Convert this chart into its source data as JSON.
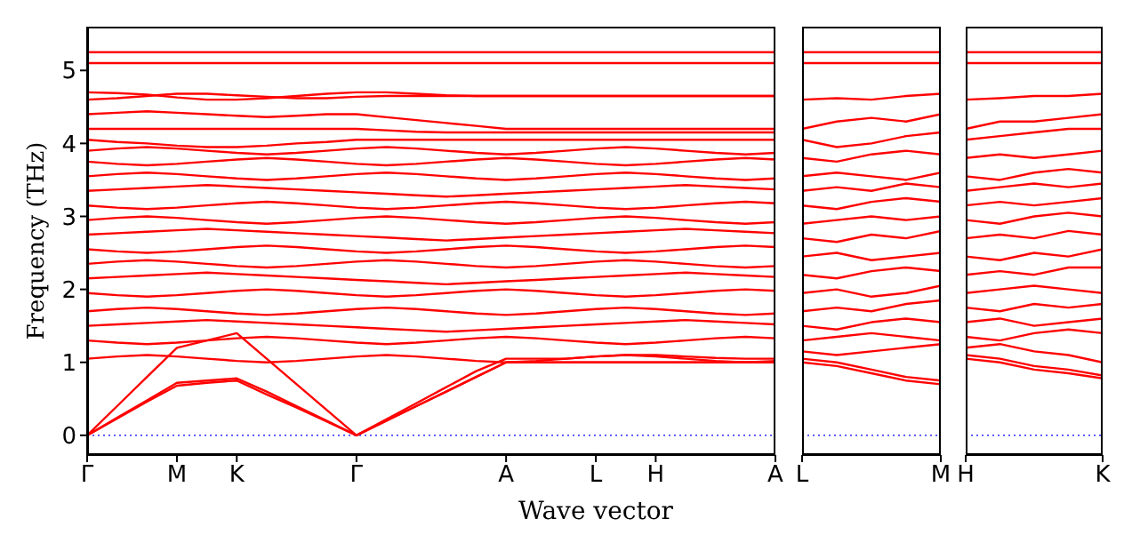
{
  "chart_data": [
    {
      "type": "line",
      "ylabel": "Frequency (THz)",
      "xlabel": "Wave vector",
      "line_style": "solid",
      "marker": "none",
      "categories": [
        "Γ",
        null,
        null,
        "M",
        null,
        "K",
        null,
        null,
        null,
        "Γ",
        null,
        null,
        null,
        null,
        "A",
        null,
        null,
        "L",
        null,
        "H",
        null,
        null,
        null,
        "A"
      ],
      "ylim": [
        -0.27,
        5.6
      ],
      "yticks": [
        0,
        1,
        2,
        3,
        4,
        5
      ],
      "ref_lines": [
        {
          "axis": "y",
          "value": 0,
          "color": "#0000ff",
          "line_style": "dotted"
        }
      ],
      "series": [
        {
          "color": "#ff0000",
          "values": [
            0,
            0.23,
            0.46,
            0.68,
            0.72,
            0.75,
            0.56,
            0.38,
            0.19,
            0,
            0.2,
            0.4,
            0.6,
            0.8,
            1.0,
            1.0,
            1.0,
            1.0,
            1.0,
            1.0,
            1.0,
            1.0,
            1.0,
            1.0
          ]
        },
        {
          "color": "#ff0000",
          "values": [
            0,
            0.24,
            0.48,
            0.72,
            0.75,
            0.78,
            0.6,
            0.4,
            0.2,
            0,
            0.2,
            0.4,
            0.6,
            0.8,
            1.0,
            1.0,
            1.0,
            1.0,
            1.0,
            1.0,
            1.0,
            1.0,
            1.0,
            1.0
          ]
        },
        {
          "color": "#ff0000",
          "values": [
            0,
            0.4,
            0.8,
            1.2,
            1.3,
            1.4,
            1.05,
            0.7,
            0.35,
            0,
            0.22,
            0.44,
            0.66,
            0.88,
            1.05,
            1.05,
            1.05,
            1.08,
            1.1,
            1.1,
            1.08,
            1.06,
            1.05,
            1.05
          ]
        },
        {
          "color": "#ff0000",
          "values": [
            1.05,
            1.08,
            1.1,
            1.08,
            1.05,
            1.02,
            1.0,
            1.02,
            1.05,
            1.08,
            1.1,
            1.08,
            1.05,
            1.02,
            1.0,
            1.02,
            1.05,
            1.08,
            1.1,
            1.08,
            1.05,
            1.02,
            1.0,
            1.02
          ]
        },
        {
          "color": "#ff0000",
          "values": [
            1.3,
            1.27,
            1.25,
            1.27,
            1.3,
            1.33,
            1.35,
            1.33,
            1.3,
            1.27,
            1.25,
            1.27,
            1.3,
            1.33,
            1.35,
            1.33,
            1.3,
            1.27,
            1.25,
            1.27,
            1.3,
            1.33,
            1.35,
            1.33
          ]
        },
        {
          "color": "#ff0000",
          "values": [
            1.5,
            1.52,
            1.54,
            1.56,
            1.58,
            1.56,
            1.54,
            1.52,
            1.5,
            1.48,
            1.46,
            1.44,
            1.42,
            1.44,
            1.46,
            1.48,
            1.5,
            1.52,
            1.54,
            1.56,
            1.58,
            1.56,
            1.54,
            1.52
          ]
        },
        {
          "color": "#ff0000",
          "values": [
            1.7,
            1.73,
            1.75,
            1.73,
            1.7,
            1.67,
            1.65,
            1.67,
            1.7,
            1.73,
            1.75,
            1.73,
            1.7,
            1.67,
            1.65,
            1.67,
            1.7,
            1.73,
            1.75,
            1.73,
            1.7,
            1.67,
            1.65,
            1.67
          ]
        },
        {
          "color": "#ff0000",
          "values": [
            1.95,
            1.92,
            1.9,
            1.92,
            1.95,
            1.98,
            2.0,
            1.98,
            1.95,
            1.92,
            1.9,
            1.92,
            1.95,
            1.98,
            2.0,
            1.98,
            1.95,
            1.92,
            1.9,
            1.92,
            1.95,
            1.98,
            2.0,
            1.98
          ]
        },
        {
          "color": "#ff0000",
          "values": [
            2.15,
            2.17,
            2.19,
            2.21,
            2.23,
            2.21,
            2.19,
            2.17,
            2.15,
            2.13,
            2.11,
            2.09,
            2.07,
            2.09,
            2.11,
            2.13,
            2.15,
            2.17,
            2.19,
            2.21,
            2.23,
            2.21,
            2.19,
            2.17
          ]
        },
        {
          "color": "#ff0000",
          "values": [
            2.35,
            2.38,
            2.4,
            2.38,
            2.35,
            2.32,
            2.3,
            2.32,
            2.35,
            2.38,
            2.4,
            2.38,
            2.35,
            2.32,
            2.3,
            2.32,
            2.35,
            2.38,
            2.4,
            2.38,
            2.35,
            2.32,
            2.3,
            2.32
          ]
        },
        {
          "color": "#ff0000",
          "values": [
            2.55,
            2.52,
            2.5,
            2.52,
            2.55,
            2.58,
            2.6,
            2.58,
            2.55,
            2.52,
            2.5,
            2.52,
            2.55,
            2.58,
            2.6,
            2.58,
            2.55,
            2.52,
            2.5,
            2.52,
            2.55,
            2.58,
            2.6,
            2.58
          ]
        },
        {
          "color": "#ff0000",
          "values": [
            2.75,
            2.77,
            2.79,
            2.81,
            2.83,
            2.81,
            2.79,
            2.77,
            2.75,
            2.73,
            2.71,
            2.69,
            2.67,
            2.69,
            2.71,
            2.73,
            2.75,
            2.77,
            2.79,
            2.81,
            2.83,
            2.81,
            2.79,
            2.77
          ]
        },
        {
          "color": "#ff0000",
          "values": [
            2.95,
            2.98,
            3.0,
            2.98,
            2.95,
            2.92,
            2.9,
            2.92,
            2.95,
            2.98,
            3.0,
            2.98,
            2.95,
            2.92,
            2.9,
            2.92,
            2.95,
            2.98,
            3.0,
            2.98,
            2.95,
            2.92,
            2.9,
            2.92
          ]
        },
        {
          "color": "#ff0000",
          "values": [
            3.15,
            3.12,
            3.1,
            3.12,
            3.15,
            3.18,
            3.2,
            3.18,
            3.15,
            3.12,
            3.1,
            3.12,
            3.15,
            3.18,
            3.2,
            3.18,
            3.15,
            3.12,
            3.1,
            3.12,
            3.15,
            3.18,
            3.2,
            3.18
          ]
        },
        {
          "color": "#ff0000",
          "values": [
            3.35,
            3.37,
            3.39,
            3.41,
            3.43,
            3.41,
            3.39,
            3.37,
            3.35,
            3.33,
            3.31,
            3.29,
            3.27,
            3.29,
            3.31,
            3.33,
            3.35,
            3.37,
            3.39,
            3.41,
            3.43,
            3.41,
            3.39,
            3.37
          ]
        },
        {
          "color": "#ff0000",
          "values": [
            3.55,
            3.58,
            3.6,
            3.58,
            3.55,
            3.52,
            3.5,
            3.52,
            3.55,
            3.58,
            3.6,
            3.58,
            3.55,
            3.52,
            3.5,
            3.52,
            3.55,
            3.58,
            3.6,
            3.58,
            3.55,
            3.52,
            3.5,
            3.52
          ]
        },
        {
          "color": "#ff0000",
          "values": [
            3.75,
            3.72,
            3.7,
            3.72,
            3.75,
            3.78,
            3.8,
            3.78,
            3.75,
            3.72,
            3.7,
            3.72,
            3.75,
            3.78,
            3.8,
            3.78,
            3.75,
            3.72,
            3.7,
            3.72,
            3.75,
            3.78,
            3.8,
            3.78
          ]
        },
        {
          "color": "#ff0000",
          "values": [
            3.9,
            3.93,
            3.95,
            3.93,
            3.9,
            3.87,
            3.85,
            3.87,
            3.9,
            3.93,
            3.95,
            3.93,
            3.9,
            3.87,
            3.85,
            3.87,
            3.9,
            3.93,
            3.95,
            3.93,
            3.9,
            3.87,
            3.85,
            3.87
          ]
        },
        {
          "color": "#ff0000",
          "values": [
            4.05,
            4.02,
            4.0,
            3.97,
            3.95,
            3.95,
            3.97,
            4.0,
            4.02,
            4.05,
            4.05,
            4.05,
            4.05,
            4.05,
            4.05,
            4.05,
            4.05,
            4.05,
            4.05,
            4.05,
            4.05,
            4.05,
            4.05,
            4.05
          ]
        },
        {
          "color": "#ff0000",
          "values": [
            4.2,
            4.2,
            4.2,
            4.2,
            4.2,
            4.2,
            4.2,
            4.2,
            4.2,
            4.2,
            4.18,
            4.16,
            4.15,
            4.15,
            4.15,
            4.15,
            4.15,
            4.15,
            4.15,
            4.15,
            4.15,
            4.15,
            4.15,
            4.15
          ]
        },
        {
          "color": "#ff0000",
          "values": [
            4.4,
            4.42,
            4.44,
            4.42,
            4.4,
            4.38,
            4.36,
            4.38,
            4.4,
            4.4,
            4.36,
            4.32,
            4.28,
            4.24,
            4.2,
            4.2,
            4.2,
            4.2,
            4.2,
            4.2,
            4.2,
            4.2,
            4.2,
            4.2
          ]
        },
        {
          "color": "#ff0000",
          "values": [
            4.6,
            4.62,
            4.65,
            4.68,
            4.68,
            4.66,
            4.64,
            4.62,
            4.62,
            4.64,
            4.65,
            4.65,
            4.65,
            4.65,
            4.65,
            4.65,
            4.65,
            4.65,
            4.65,
            4.65,
            4.65,
            4.65,
            4.65,
            4.65
          ]
        },
        {
          "color": "#ff0000",
          "values": [
            4.7,
            4.69,
            4.67,
            4.63,
            4.6,
            4.6,
            4.62,
            4.65,
            4.68,
            4.7,
            4.7,
            4.68,
            4.66,
            4.65,
            4.65,
            4.65,
            4.65,
            4.65,
            4.65,
            4.65,
            4.65,
            4.65,
            4.65,
            4.65
          ]
        },
        {
          "color": "#ff0000",
          "values": [
            5.1,
            5.1,
            5.1,
            5.1,
            5.1,
            5.1,
            5.1,
            5.1,
            5.1,
            5.1,
            5.1,
            5.1,
            5.1,
            5.1,
            5.1,
            5.1,
            5.1,
            5.1,
            5.1,
            5.1,
            5.1,
            5.1,
            5.1,
            5.1
          ]
        },
        {
          "color": "#ff0000",
          "values": [
            5.25,
            5.25,
            5.25,
            5.25,
            5.25,
            5.25,
            5.25,
            5.25,
            5.25,
            5.25,
            5.25,
            5.25,
            5.25,
            5.25,
            5.25,
            5.25,
            5.25,
            5.25,
            5.25,
            5.25,
            5.25,
            5.25,
            5.25,
            5.25
          ]
        }
      ]
    },
    {
      "type": "line",
      "line_style": "solid",
      "marker": "none",
      "tick_labels": "x",
      "categories": [
        "L",
        null,
        null,
        null,
        "M"
      ],
      "ylim": [
        -0.27,
        5.6
      ],
      "yticks": [
        0,
        1,
        2,
        3,
        4,
        5
      ],
      "ref_lines": [
        {
          "axis": "y",
          "value": 0,
          "color": "#0000ff",
          "line_style": "dotted"
        }
      ],
      "series": [
        {
          "color": "#ff0000",
          "values": [
            1.0,
            0.95,
            0.85,
            0.75,
            0.7
          ]
        },
        {
          "color": "#ff0000",
          "values": [
            1.05,
            1.0,
            0.9,
            0.8,
            0.75
          ]
        },
        {
          "color": "#ff0000",
          "values": [
            1.15,
            1.1,
            1.15,
            1.2,
            1.25
          ]
        },
        {
          "color": "#ff0000",
          "values": [
            1.3,
            1.35,
            1.4,
            1.35,
            1.3
          ]
        },
        {
          "color": "#ff0000",
          "values": [
            1.5,
            1.45,
            1.55,
            1.6,
            1.55
          ]
        },
        {
          "color": "#ff0000",
          "values": [
            1.7,
            1.75,
            1.7,
            1.8,
            1.85
          ]
        },
        {
          "color": "#ff0000",
          "values": [
            1.95,
            2.0,
            1.9,
            1.95,
            2.05
          ]
        },
        {
          "color": "#ff0000",
          "values": [
            2.2,
            2.15,
            2.25,
            2.3,
            2.25
          ]
        },
        {
          "color": "#ff0000",
          "values": [
            2.45,
            2.5,
            2.4,
            2.45,
            2.5
          ]
        },
        {
          "color": "#ff0000",
          "values": [
            2.7,
            2.65,
            2.75,
            2.7,
            2.8
          ]
        },
        {
          "color": "#ff0000",
          "values": [
            2.9,
            2.95,
            3.0,
            2.95,
            3.0
          ]
        },
        {
          "color": "#ff0000",
          "values": [
            3.15,
            3.1,
            3.2,
            3.25,
            3.2
          ]
        },
        {
          "color": "#ff0000",
          "values": [
            3.35,
            3.4,
            3.35,
            3.45,
            3.4
          ]
        },
        {
          "color": "#ff0000",
          "values": [
            3.55,
            3.6,
            3.55,
            3.5,
            3.6
          ]
        },
        {
          "color": "#ff0000",
          "values": [
            3.8,
            3.75,
            3.85,
            3.9,
            3.85
          ]
        },
        {
          "color": "#ff0000",
          "values": [
            4.05,
            3.95,
            4.0,
            4.1,
            4.15
          ]
        },
        {
          "color": "#ff0000",
          "values": [
            4.2,
            4.3,
            4.35,
            4.3,
            4.4
          ]
        },
        {
          "color": "#ff0000",
          "values": [
            4.6,
            4.62,
            4.6,
            4.65,
            4.68
          ]
        },
        {
          "color": "#ff0000",
          "values": [
            5.1,
            5.1,
            5.1,
            5.1,
            5.1
          ]
        },
        {
          "color": "#ff0000",
          "values": [
            5.25,
            5.25,
            5.25,
            5.25,
            5.25
          ]
        }
      ]
    },
    {
      "type": "line",
      "line_style": "solid",
      "marker": "none",
      "tick_labels": "x",
      "categories": [
        "H",
        null,
        null,
        null,
        "K"
      ],
      "ylim": [
        -0.27,
        5.6
      ],
      "yticks": [
        0,
        1,
        2,
        3,
        4,
        5
      ],
      "ref_lines": [
        {
          "axis": "y",
          "value": 0,
          "color": "#0000ff",
          "line_style": "dotted"
        }
      ],
      "series": [
        {
          "color": "#ff0000",
          "values": [
            1.05,
            1.0,
            0.9,
            0.85,
            0.78
          ]
        },
        {
          "color": "#ff0000",
          "values": [
            1.1,
            1.05,
            0.95,
            0.9,
            0.82
          ]
        },
        {
          "color": "#ff0000",
          "values": [
            1.2,
            1.25,
            1.15,
            1.1,
            1.0
          ]
        },
        {
          "color": "#ff0000",
          "values": [
            1.35,
            1.3,
            1.4,
            1.45,
            1.4
          ]
        },
        {
          "color": "#ff0000",
          "values": [
            1.55,
            1.6,
            1.5,
            1.55,
            1.6
          ]
        },
        {
          "color": "#ff0000",
          "values": [
            1.75,
            1.7,
            1.8,
            1.75,
            1.8
          ]
        },
        {
          "color": "#ff0000",
          "values": [
            1.95,
            2.0,
            2.05,
            2.0,
            1.95
          ]
        },
        {
          "color": "#ff0000",
          "values": [
            2.2,
            2.25,
            2.2,
            2.3,
            2.3
          ]
        },
        {
          "color": "#ff0000",
          "values": [
            2.45,
            2.4,
            2.5,
            2.45,
            2.55
          ]
        },
        {
          "color": "#ff0000",
          "values": [
            2.7,
            2.75,
            2.7,
            2.8,
            2.75
          ]
        },
        {
          "color": "#ff0000",
          "values": [
            2.95,
            2.9,
            3.0,
            3.05,
            3.0
          ]
        },
        {
          "color": "#ff0000",
          "values": [
            3.15,
            3.2,
            3.15,
            3.2,
            3.25
          ]
        },
        {
          "color": "#ff0000",
          "values": [
            3.35,
            3.4,
            3.45,
            3.4,
            3.45
          ]
        },
        {
          "color": "#ff0000",
          "values": [
            3.55,
            3.5,
            3.6,
            3.65,
            3.6
          ]
        },
        {
          "color": "#ff0000",
          "values": [
            3.8,
            3.85,
            3.8,
            3.85,
            3.9
          ]
        },
        {
          "color": "#ff0000",
          "values": [
            4.05,
            4.1,
            4.15,
            4.2,
            4.2
          ]
        },
        {
          "color": "#ff0000",
          "values": [
            4.2,
            4.3,
            4.3,
            4.35,
            4.4
          ]
        },
        {
          "color": "#ff0000",
          "values": [
            4.6,
            4.62,
            4.65,
            4.65,
            4.68
          ]
        },
        {
          "color": "#ff0000",
          "values": [
            5.1,
            5.1,
            5.1,
            5.1,
            5.1
          ]
        },
        {
          "color": "#ff0000",
          "values": [
            5.25,
            5.25,
            5.25,
            5.25,
            5.25
          ]
        }
      ]
    }
  ]
}
